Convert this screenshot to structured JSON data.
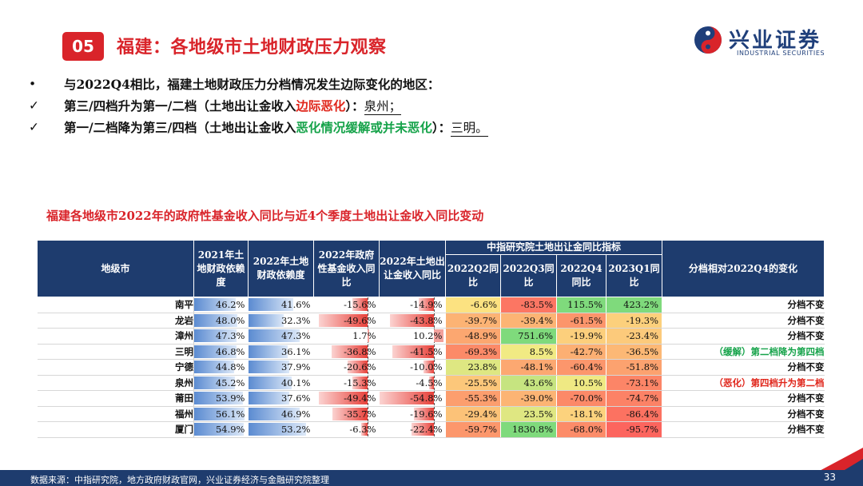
{
  "header": {
    "section_number": "05",
    "title": "福建：各地级市土地财政压力观察",
    "logo_cn": "兴业证券",
    "logo_en": "INDUSTRIAL SECURITIES"
  },
  "bullets": {
    "intro": {
      "mark": "•",
      "text": "与2022Q4相比，福建土地财政压力分档情况发生边际变化的地区："
    },
    "up": {
      "mark": "✓",
      "pre": "第三/四档升为第一/二档（土地出让金收入",
      "highlight": "边际恶化",
      "post": "）：",
      "city": "泉州；"
    },
    "down": {
      "mark": "✓",
      "pre": "第一/二档降为第三/四档（土地出让金收入",
      "highlight": "恶化情况缓解或并未恶化",
      "post": "）：",
      "city": "三明。"
    }
  },
  "table": {
    "caption": "福建各地级市2022年的政府性基金收入同比与近4个季度土地出让金收入同比变动",
    "headers": {
      "city": "地级市",
      "dep2021": "2021年土地财政依赖度",
      "dep2022": "2022年土地财政依赖度",
      "fund2022": "2022年政府性基金收入同比",
      "land2022": "2022年土地出让金收入同比",
      "group": "中指研究院土地出让金同比指标",
      "q2": "2022Q2同比",
      "q3": "2022Q3同比",
      "q4": "2022Q4同比",
      "q1": "2023Q1同比",
      "change": "分档相对2022Q4的变化"
    },
    "colors": {
      "header_bg": "#1e3c6e",
      "dep_bar": "#5b8bd1",
      "neg_bar": "#e8413a",
      "pos_bar": "#e8413a",
      "text_red": "#e0261b",
      "text_green": "#16a34a"
    },
    "rows": [
      {
        "city": "南平",
        "dep2021": "46.2%",
        "dep2022": "41.6%",
        "fund2022": "-15.6%",
        "land2022": "-14.9%",
        "q2": "-6.6%",
        "q3": "-83.5%",
        "q4": "115.5%",
        "q1": "423.2%",
        "change": "分档不变",
        "change_tone": "normal"
      },
      {
        "city": "龙岩",
        "dep2021": "48.0%",
        "dep2022": "32.3%",
        "fund2022": "-49.6%",
        "land2022": "-43.8%",
        "q2": "-39.7%",
        "q3": "-39.4%",
        "q4": "-61.5%",
        "q1": "-19.3%",
        "change": "分档不变",
        "change_tone": "normal"
      },
      {
        "city": "漳州",
        "dep2021": "47.3%",
        "dep2022": "47.3%",
        "fund2022": "1.7%",
        "land2022": "10.2%",
        "q2": "-48.9%",
        "q3": "751.6%",
        "q4": "-19.9%",
        "q1": "-23.4%",
        "change": "分档不变",
        "change_tone": "normal"
      },
      {
        "city": "三明",
        "dep2021": "46.8%",
        "dep2022": "36.1%",
        "fund2022": "-36.8%",
        "land2022": "-41.5%",
        "q2": "-69.3%",
        "q3": "8.5%",
        "q4": "-42.7%",
        "q1": "-36.5%",
        "change": "（缓解）第二档降为第四档",
        "change_tone": "green"
      },
      {
        "city": "宁德",
        "dep2021": "44.8%",
        "dep2022": "37.9%",
        "fund2022": "-20.6%",
        "land2022": "-10.0%",
        "q2": "23.8%",
        "q3": "-48.1%",
        "q4": "-60.4%",
        "q1": "-51.8%",
        "change": "分档不变",
        "change_tone": "normal"
      },
      {
        "city": "泉州",
        "dep2021": "45.2%",
        "dep2022": "40.1%",
        "fund2022": "-15.3%",
        "land2022": "-4.5%",
        "q2": "-25.5%",
        "q3": "43.6%",
        "q4": "10.5%",
        "q1": "-73.1%",
        "change": "（恶化）第四档升为第二档",
        "change_tone": "red"
      },
      {
        "city": "莆田",
        "dep2021": "53.9%",
        "dep2022": "37.6%",
        "fund2022": "-49.4%",
        "land2022": "-54.8%",
        "q2": "-55.3%",
        "q3": "-39.0%",
        "q4": "-70.0%",
        "q1": "-74.7%",
        "change": "分档不变",
        "change_tone": "normal"
      },
      {
        "city": "福州",
        "dep2021": "56.1%",
        "dep2022": "46.9%",
        "fund2022": "-35.7%",
        "land2022": "-19.6%",
        "q2": "-29.4%",
        "q3": "23.5%",
        "q4": "-18.1%",
        "q1": "-86.4%",
        "change": "分档不变",
        "change_tone": "normal"
      },
      {
        "city": "厦门",
        "dep2021": "54.9%",
        "dep2022": "53.2%",
        "fund2022": "-6.3%",
        "land2022": "-22.4%",
        "q2": "-59.7%",
        "q3": "1830.8%",
        "q4": "-68.0%",
        "q1": "-95.7%",
        "change": "分档不变",
        "change_tone": "normal"
      }
    ]
  },
  "footer": {
    "source": "数据来源：中指研究院，地方政府财政官网，兴业证券经济与金融研究院整理",
    "page": "33"
  }
}
